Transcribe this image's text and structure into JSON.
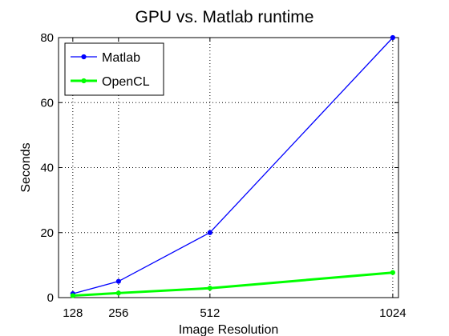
{
  "chart_data": {
    "type": "line",
    "title": "GPU vs. Matlab runtime",
    "xlabel": "Image Resolution",
    "ylabel": "Seconds",
    "xlim": [
      88,
      1040
    ],
    "ylim": [
      0,
      80
    ],
    "xticks": [
      128,
      256,
      512,
      1024
    ],
    "yticks": [
      0,
      20,
      40,
      60,
      80
    ],
    "grid": true,
    "legend_position": "top-left",
    "x": [
      128,
      256,
      512,
      1024
    ],
    "series": [
      {
        "name": "Matlab",
        "color": "#0000ff",
        "marker": "circle",
        "line_width": "thin",
        "values": [
          1.2,
          5.0,
          20.0,
          80.0
        ]
      },
      {
        "name": "OpenCL",
        "color": "#00ff00",
        "marker": "circle",
        "line_width": "thick",
        "values": [
          0.6,
          1.4,
          2.9,
          7.7
        ]
      }
    ]
  }
}
